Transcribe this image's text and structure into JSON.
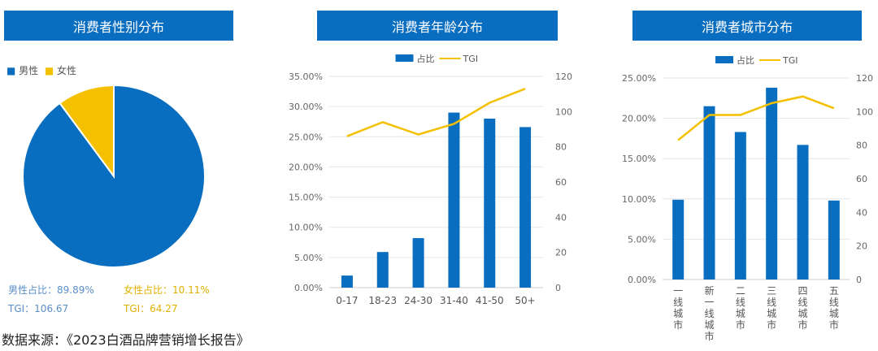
{
  "colors": {
    "blue": "#0a6ec0",
    "yellow": "#f5c000",
    "grid": "#e6e6e6"
  },
  "source": "数据来源：《2023白酒品牌营销增长报告》",
  "chart_data": [
    {
      "type": "pie",
      "title": "消费者性别分布",
      "legend": [
        "男性",
        "女性"
      ],
      "slices": [
        {
          "name": "男性",
          "value": 89.89
        },
        {
          "name": "女性",
          "value": 10.11
        }
      ],
      "annotations": {
        "male_share": "男性占比：89.89%",
        "male_tgi": "TGI：106.67",
        "female_share": "女性占比：10.11%",
        "female_tgi": "TGI：64.27"
      }
    },
    {
      "type": "bar+line",
      "title": "消费者年龄分布",
      "legend": [
        "占比",
        "TGI"
      ],
      "categories": [
        "0-17",
        "18-23",
        "24-30",
        "31-40",
        "41-50",
        "50+"
      ],
      "series": [
        {
          "name": "占比",
          "values": [
            2.0,
            5.9,
            8.2,
            29.0,
            28.0,
            26.6
          ]
        },
        {
          "name": "TGI",
          "values": [
            86,
            94,
            87,
            93,
            105,
            113
          ]
        }
      ],
      "ylim": [
        0,
        35
      ],
      "yticks": [
        "0.00%",
        "5.00%",
        "10.00%",
        "15.00%",
        "20.00%",
        "25.00%",
        "30.00%",
        "35.00%"
      ],
      "y2lim": [
        0,
        120
      ],
      "y2ticks": [
        "0",
        "20",
        "40",
        "60",
        "80",
        "100",
        "120"
      ]
    },
    {
      "type": "bar+line",
      "title": "消费者城市分布",
      "legend": [
        "占比",
        "TGI"
      ],
      "categories": [
        "一线城市",
        "新一线城市",
        "二线城市",
        "三线城市",
        "四线城市",
        "五线城市"
      ],
      "series": [
        {
          "name": "占比",
          "values": [
            9.9,
            21.5,
            18.3,
            23.8,
            16.7,
            9.8
          ]
        },
        {
          "name": "TGI",
          "values": [
            83,
            98,
            98,
            105,
            109,
            102
          ]
        }
      ],
      "ylim": [
        0,
        25
      ],
      "yticks": [
        "0.00%",
        "5.00%",
        "10.00%",
        "15.00%",
        "20.00%",
        "25.00%"
      ],
      "y2lim": [
        0,
        120
      ],
      "y2ticks": [
        "0",
        "20",
        "40",
        "60",
        "80",
        "100",
        "120"
      ]
    }
  ]
}
